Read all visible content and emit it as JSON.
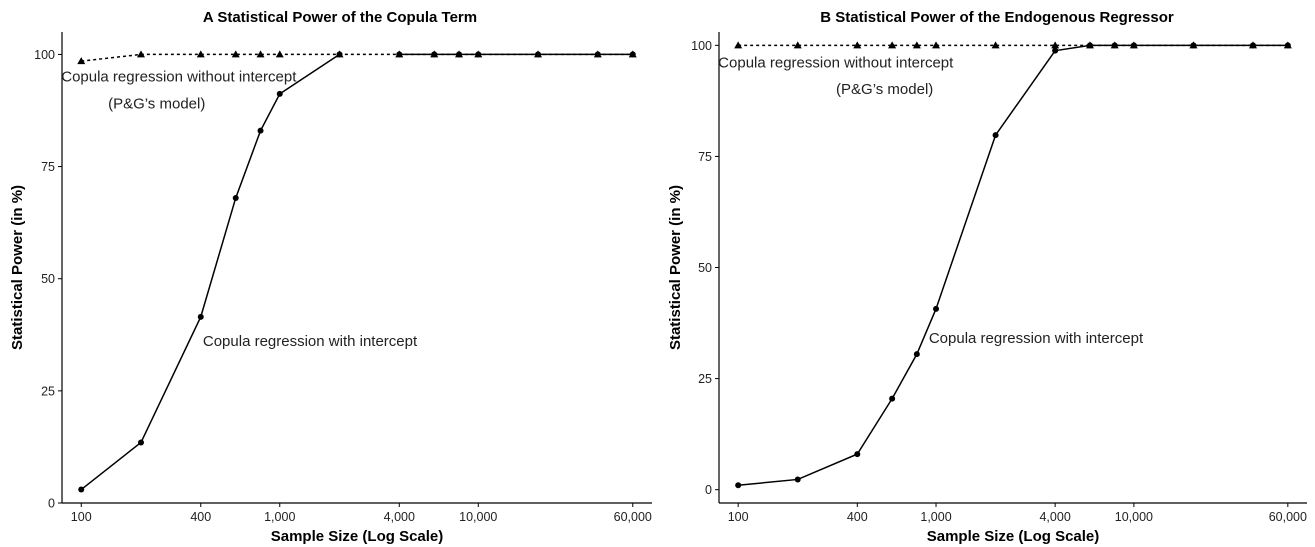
{
  "chart_data": [
    {
      "type": "line",
      "title": "A  Statistical Power of the Copula Term",
      "xlabel": "Sample Size (Log Scale)",
      "ylabel": "Statistical Power (in %)",
      "x_scale": "log",
      "xlim": [
        80,
        75000
      ],
      "ylim": [
        0,
        105
      ],
      "x_ticks": [
        100,
        400,
        1000,
        4000,
        10000,
        60000
      ],
      "x_tick_labels": [
        "100",
        "400",
        "1,000",
        "4,000",
        "10,000",
        "60,000"
      ],
      "y_ticks": [
        0,
        25,
        50,
        75,
        100
      ],
      "y_tick_labels": [
        "0",
        "25",
        "50",
        "75",
        "100"
      ],
      "grid": false,
      "series": [
        {
          "name": "",
          "line_style": "solid",
          "marker": "circle",
          "x": [
            100,
            200,
            400,
            600,
            800,
            1000,
            2000
          ],
          "y": [
            3,
            13.5,
            41.5,
            68,
            83,
            91.2,
            100
          ]
        },
        {
          "name": "",
          "line_style": "dotted",
          "marker": "triangle",
          "x": [
            100,
            200,
            400,
            600,
            800,
            1000,
            2000,
            4000,
            6000,
            8000,
            10000,
            20000,
            40000,
            60000
          ],
          "y": [
            98.5,
            100,
            100,
            100,
            100,
            100,
            100,
            100,
            100,
            100,
            100,
            100,
            100,
            100
          ]
        },
        {
          "name": "",
          "line_style": "solid",
          "marker": "circle",
          "x": [
            4000,
            6000,
            8000,
            10000,
            20000,
            40000,
            60000
          ],
          "y": [
            100,
            100,
            100,
            100,
            100,
            100,
            100
          ]
        }
      ],
      "annotations": [
        {
          "text": "Copula regression without intercept",
          "x": 100,
          "y": 94
        },
        {
          "text": "(P&G’s model)",
          "x": 240,
          "y": 88
        },
        {
          "text": "Copula regression with intercept",
          "x": 410,
          "y": 35
        }
      ]
    },
    {
      "type": "line",
      "title": "B  Statistical Power of the Endogenous Regressor",
      "xlabel": "Sample Size (Log Scale)",
      "ylabel": "Statistical Power (in %)",
      "x_scale": "log",
      "xlim": [
        80,
        75000
      ],
      "ylim": [
        -3,
        103
      ],
      "x_ticks": [
        100,
        400,
        1000,
        4000,
        10000,
        60000
      ],
      "x_tick_labels": [
        "100",
        "400",
        "1,000",
        "4,000",
        "10,000",
        "60,000"
      ],
      "y_ticks": [
        0,
        25,
        50,
        75,
        100
      ],
      "y_tick_labels": [
        "0",
        "25",
        "50",
        "75",
        "100"
      ],
      "grid": false,
      "series": [
        {
          "name": "",
          "line_style": "solid",
          "marker": "circle",
          "x": [
            100,
            200,
            400,
            600,
            800,
            1000,
            2000,
            4000,
            6000,
            8000,
            10000,
            20000,
            40000,
            60000
          ],
          "y": [
            1,
            2.3,
            8,
            20.5,
            30.5,
            40.7,
            79.8,
            98.8,
            100,
            100,
            100,
            100,
            100,
            100
          ]
        },
        {
          "name": "",
          "line_style": "dotted",
          "marker": "triangle",
          "x": [
            100,
            200,
            400,
            600,
            800,
            1000,
            2000,
            4000,
            6000,
            8000,
            10000,
            20000,
            40000,
            60000
          ],
          "y": [
            100,
            100,
            100,
            100,
            100,
            100,
            100,
            100,
            100,
            100,
            100,
            100,
            100,
            100
          ]
        }
      ],
      "annotations": [
        {
          "text": "Copula regression without intercept",
          "x": 100,
          "y": 95
        },
        {
          "text": "(P&G’s model)",
          "x": 550,
          "y": 89
        },
        {
          "text": "Copula regression with intercept",
          "x": 920,
          "y": 33
        }
      ]
    }
  ]
}
